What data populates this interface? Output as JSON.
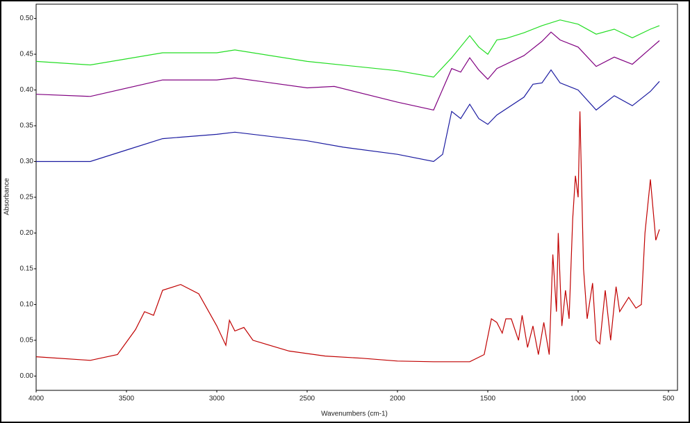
{
  "chart_data": {
    "type": "line",
    "xlabel": "Wavenumbers (cm-1)",
    "ylabel": "Absorbance",
    "xlim": [
      4000,
      450
    ],
    "ylim": [
      -0.02,
      0.52
    ],
    "xticks": [
      4000,
      3500,
      3000,
      2500,
      2000,
      1500,
      1000,
      500
    ],
    "yticks": [
      {
        "value": 0,
        "label": "0.00"
      },
      0.05,
      {
        "value": 0.1,
        "label": "0.10"
      },
      0.15,
      {
        "value": 0.2,
        "label": "0.20"
      },
      0.25,
      {
        "value": 0.3,
        "label": "0.30"
      },
      0.35,
      {
        "value": 0.4,
        "label": "0.40"
      },
      0.45,
      {
        "value": 0.5,
        "label": "0.50"
      }
    ],
    "series": [
      {
        "color": "#22dd22",
        "x": [
          4000,
          3700,
          3300,
          3000,
          2900,
          2500,
          2000,
          1800,
          1700,
          1600,
          1550,
          1500,
          1450,
          1400,
          1300,
          1200,
          1100,
          1000,
          900,
          800,
          700,
          600,
          550
        ],
        "values": [
          0.44,
          0.435,
          0.452,
          0.452,
          0.456,
          0.44,
          0.427,
          0.418,
          0.445,
          0.476,
          0.46,
          0.45,
          0.47,
          0.472,
          0.48,
          0.49,
          0.498,
          0.492,
          0.478,
          0.485,
          0.473,
          0.485,
          0.49
        ]
      },
      {
        "color": "#800080",
        "x": [
          4000,
          3700,
          3300,
          3000,
          2900,
          2500,
          2350,
          2000,
          1800,
          1700,
          1650,
          1600,
          1550,
          1500,
          1450,
          1300,
          1200,
          1150,
          1100,
          1000,
          900,
          800,
          700,
          600,
          550
        ],
        "values": [
          0.394,
          0.391,
          0.414,
          0.414,
          0.417,
          0.403,
          0.405,
          0.383,
          0.372,
          0.43,
          0.425,
          0.445,
          0.428,
          0.415,
          0.43,
          0.448,
          0.468,
          0.481,
          0.47,
          0.46,
          0.433,
          0.446,
          0.436,
          0.458,
          0.469
        ]
      },
      {
        "color": "#1a1aa0",
        "x": [
          4000,
          3700,
          3500,
          3300,
          3000,
          2900,
          2500,
          2300,
          2000,
          1800,
          1750,
          1700,
          1650,
          1600,
          1550,
          1500,
          1450,
          1300,
          1250,
          1200,
          1150,
          1100,
          1000,
          900,
          800,
          700,
          600,
          550
        ],
        "values": [
          0.3,
          0.3,
          0.316,
          0.332,
          0.338,
          0.341,
          0.329,
          0.32,
          0.31,
          0.3,
          0.31,
          0.37,
          0.36,
          0.38,
          0.36,
          0.352,
          0.365,
          0.39,
          0.408,
          0.41,
          0.428,
          0.41,
          0.4,
          0.372,
          0.392,
          0.378,
          0.398,
          0.412
        ]
      },
      {
        "color": "#c00000",
        "x": [
          4000,
          3700,
          3550,
          3450,
          3400,
          3350,
          3300,
          3200,
          3100,
          3000,
          2950,
          2930,
          2900,
          2850,
          2800,
          2600,
          2400,
          2200,
          2000,
          1800,
          1600,
          1520,
          1480,
          1450,
          1420,
          1400,
          1370,
          1330,
          1310,
          1280,
          1250,
          1220,
          1190,
          1160,
          1140,
          1120,
          1110,
          1090,
          1070,
          1050,
          1040,
          1030,
          1015,
          1000,
          990,
          970,
          950,
          920,
          900,
          880,
          850,
          820,
          790,
          770,
          720,
          680,
          650,
          630,
          600,
          570,
          550
        ],
        "values": [
          0.027,
          0.022,
          0.03,
          0.065,
          0.09,
          0.085,
          0.12,
          0.128,
          0.115,
          0.07,
          0.043,
          0.078,
          0.063,
          0.068,
          0.05,
          0.035,
          0.028,
          0.025,
          0.021,
          0.02,
          0.02,
          0.03,
          0.08,
          0.075,
          0.06,
          0.08,
          0.08,
          0.05,
          0.085,
          0.04,
          0.07,
          0.03,
          0.075,
          0.03,
          0.17,
          0.09,
          0.2,
          0.07,
          0.12,
          0.08,
          0.15,
          0.22,
          0.28,
          0.25,
          0.37,
          0.15,
          0.08,
          0.13,
          0.05,
          0.045,
          0.12,
          0.05,
          0.125,
          0.09,
          0.11,
          0.095,
          0.1,
          0.2,
          0.275,
          0.19,
          0.205
        ]
      }
    ]
  }
}
